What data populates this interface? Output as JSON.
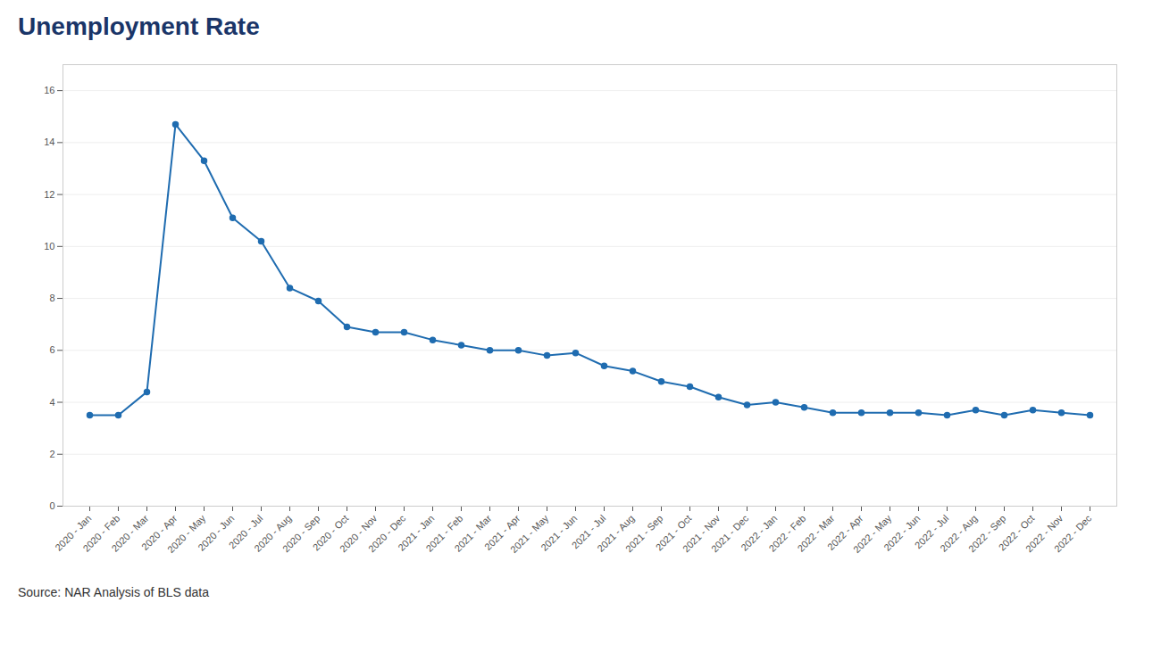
{
  "chart_data": {
    "type": "line",
    "title": "Unemployment Rate",
    "caption": "Source: NAR Analysis of BLS data",
    "categories": [
      "2020 - Jan",
      "2020 - Feb",
      "2020 - Mar",
      "2020 - Apr",
      "2020 - May",
      "2020 - Jun",
      "2020 - Jul",
      "2020 - Aug",
      "2020 - Sep",
      "2020 - Oct",
      "2020 - Nov",
      "2020 - Dec",
      "2021 - Jan",
      "2021 - Feb",
      "2021 - Mar",
      "2021 - Apr",
      "2021 - May",
      "2021 - Jun",
      "2021 - Jul",
      "2021 - Aug",
      "2021 - Sep",
      "2021 - Oct",
      "2021 - Nov",
      "2021 - Dec",
      "2022 - Jan",
      "2022 - Feb",
      "2022 - Mar",
      "2022 - Apr",
      "2022 - May",
      "2022 - Jun",
      "2022 - Jul",
      "2022 - Aug",
      "2022 - Sep",
      "2022 - Oct",
      "2022 - Nov",
      "2022 - Dec"
    ],
    "values": [
      3.5,
      3.5,
      4.4,
      14.7,
      13.3,
      11.1,
      10.2,
      8.4,
      7.9,
      6.9,
      6.7,
      6.7,
      6.4,
      6.2,
      6.0,
      6.0,
      5.8,
      5.9,
      5.4,
      5.2,
      4.8,
      4.6,
      4.2,
      3.9,
      4.0,
      3.8,
      3.6,
      3.6,
      3.6,
      3.6,
      3.5,
      3.7,
      3.5,
      3.7,
      3.6,
      3.5
    ],
    "color": "#1f6cb0",
    "marker": "circle",
    "ylim": [
      0,
      17
    ],
    "yticks": [
      0,
      2,
      4,
      6,
      8,
      10,
      12,
      14,
      16
    ],
    "grid": true
  }
}
